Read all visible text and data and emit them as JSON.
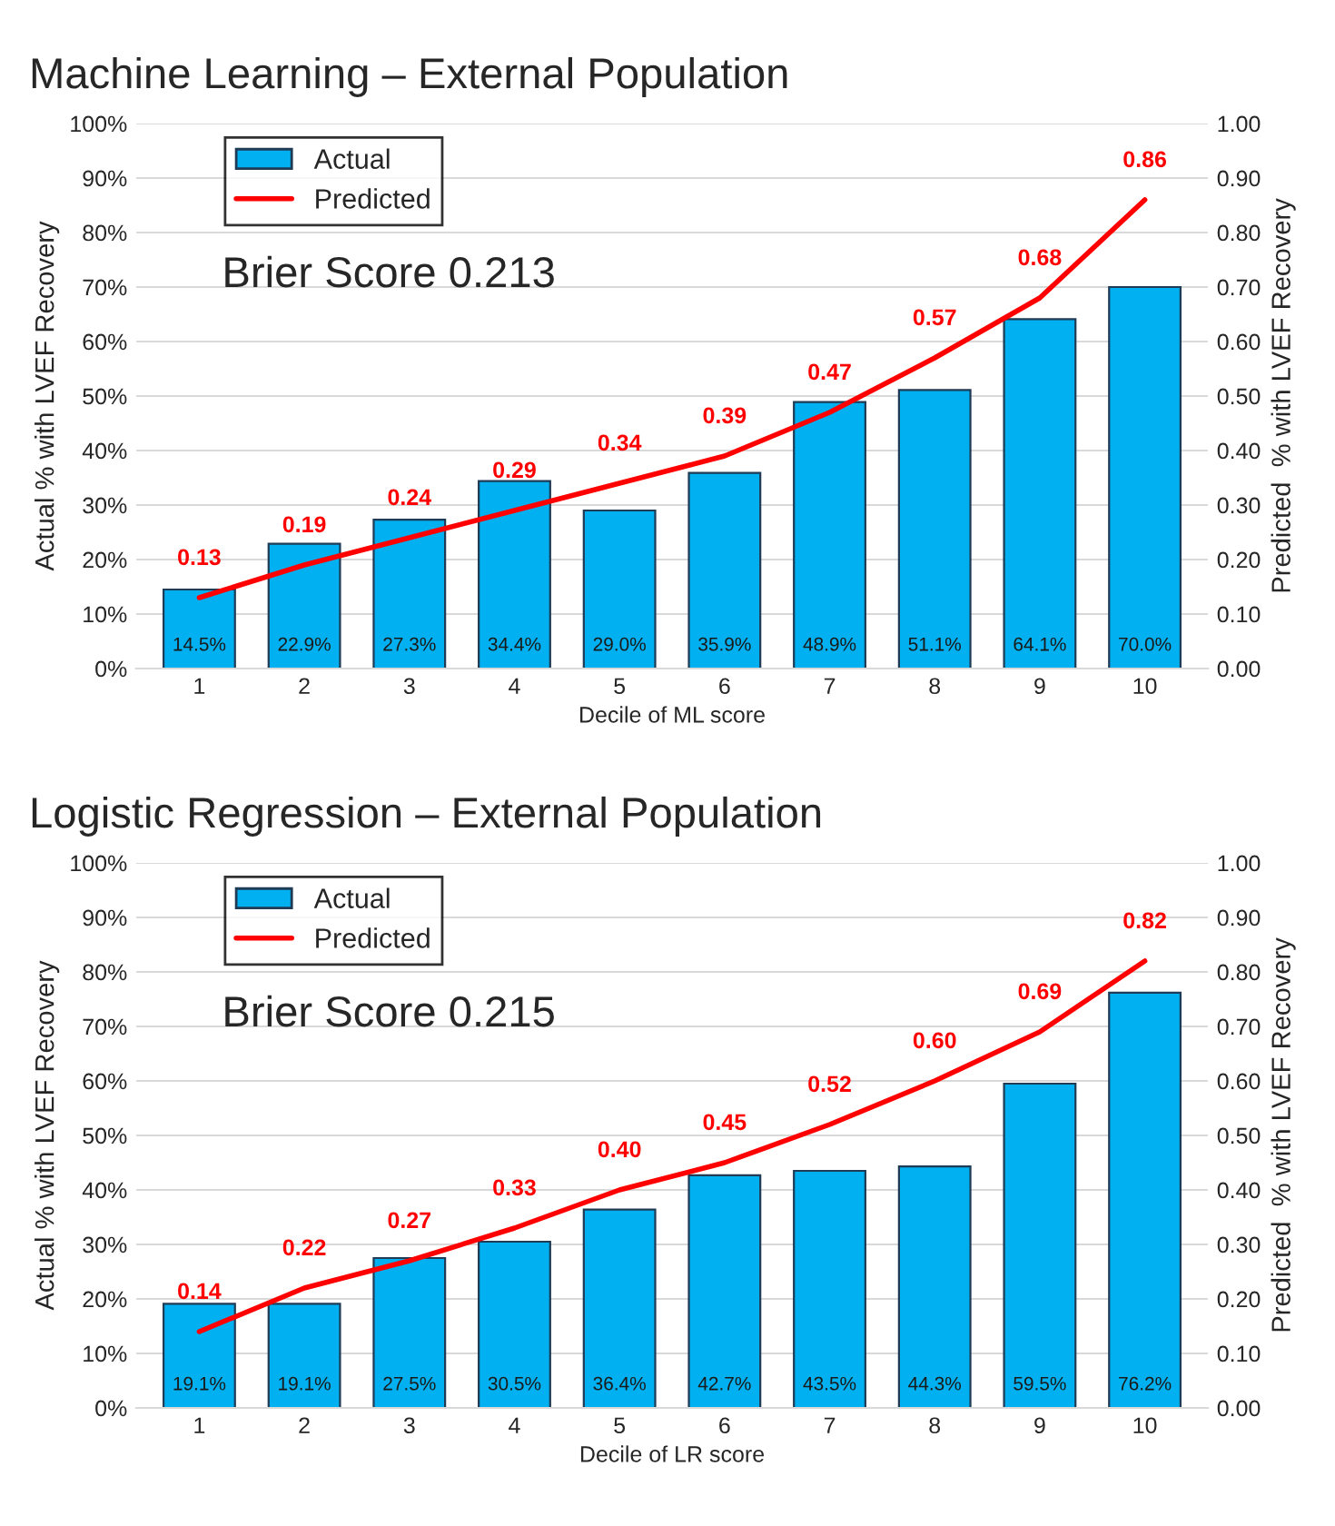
{
  "chart_data": [
    {
      "type": "bar",
      "title": "Machine Learning – External Population",
      "xlabel": "Decile of ML score",
      "ylabel": "Actual % with LVEF Recovery",
      "y2label": "Predicted  % with LVEF Recovery",
      "categories": [
        "1",
        "2",
        "3",
        "4",
        "5",
        "6",
        "7",
        "8",
        "9",
        "10"
      ],
      "series": [
        {
          "name": "Actual",
          "color": "#00b0f0",
          "values": [
            14.5,
            22.9,
            27.3,
            34.4,
            29.0,
            35.9,
            48.9,
            51.1,
            64.1,
            70.0
          ],
          "value_labels": [
            "14.5%",
            "22.9%",
            "27.3%",
            "34.4%",
            "29.0%",
            "35.9%",
            "48.9%",
            "51.1%",
            "64.1%",
            "70.0%"
          ]
        },
        {
          "name": "Predicted",
          "type": "line",
          "axis": "y2",
          "color": "#ff0000",
          "values": [
            0.13,
            0.19,
            0.24,
            0.29,
            0.34,
            0.39,
            0.47,
            0.57,
            0.68,
            0.86
          ],
          "value_labels": [
            "0.13",
            "0.19",
            "0.24",
            "0.29",
            "0.34",
            "0.39",
            "0.47",
            "0.57",
            "0.68",
            "0.86"
          ]
        }
      ],
      "ylim": [
        0,
        100
      ],
      "yticks": [
        {
          "value": 0,
          "label": "0%"
        },
        {
          "value": 10,
          "label": "10%"
        },
        {
          "value": 20,
          "label": "20%"
        },
        {
          "value": 30,
          "label": "30%"
        },
        {
          "value": 40,
          "label": "40%"
        },
        {
          "value": 50,
          "label": "50%"
        },
        {
          "value": 60,
          "label": "60%"
        },
        {
          "value": 70,
          "label": "70%"
        },
        {
          "value": 80,
          "label": "80%"
        },
        {
          "value": 90,
          "label": "90%"
        },
        {
          "value": 100,
          "label": "100%"
        }
      ],
      "y2lim": [
        0,
        1
      ],
      "y2ticks": [
        {
          "value": 0,
          "label": "0.00"
        },
        {
          "value": 0.1,
          "label": "0.10"
        },
        {
          "value": 0.2,
          "label": "0.20"
        },
        {
          "value": 0.3,
          "label": "0.30"
        },
        {
          "value": 0.4,
          "label": "0.40"
        },
        {
          "value": 0.5,
          "label": "0.50"
        },
        {
          "value": 0.6,
          "label": "0.60"
        },
        {
          "value": 0.7,
          "label": "0.70"
        },
        {
          "value": 0.8,
          "label": "0.80"
        },
        {
          "value": 0.9,
          "label": "0.90"
        },
        {
          "value": 1,
          "label": "1.00"
        }
      ],
      "annotations": [
        "Brier Score 0.213"
      ],
      "grid": "y",
      "legend": "top left"
    },
    {
      "type": "bar",
      "title": "Logistic Regression – External Population",
      "xlabel": "Decile of LR score",
      "ylabel": "Actual % with LVEF Recovery",
      "y2label": "Predicted  % with LVEF Recovery",
      "categories": [
        "1",
        "2",
        "3",
        "4",
        "5",
        "6",
        "7",
        "8",
        "9",
        "10"
      ],
      "series": [
        {
          "name": "Actual",
          "color": "#00b0f0",
          "values": [
            19.1,
            19.1,
            27.5,
            30.5,
            36.4,
            42.7,
            43.5,
            44.3,
            59.5,
            76.2
          ],
          "value_labels": [
            "19.1%",
            "19.1%",
            "27.5%",
            "30.5%",
            "36.4%",
            "42.7%",
            "43.5%",
            "44.3%",
            "59.5%",
            "76.2%"
          ]
        },
        {
          "name": "Predicted",
          "type": "line",
          "axis": "y2",
          "color": "#ff0000",
          "values": [
            0.14,
            0.22,
            0.27,
            0.33,
            0.4,
            0.45,
            0.52,
            0.6,
            0.69,
            0.82
          ],
          "value_labels": [
            "0.14",
            "0.22",
            "0.27",
            "0.33",
            "0.40",
            "0.45",
            "0.52",
            "0.60",
            "0.69",
            "0.82"
          ]
        }
      ],
      "ylim": [
        0,
        100
      ],
      "yticks": [
        {
          "value": 0,
          "label": "0%"
        },
        {
          "value": 10,
          "label": "10%"
        },
        {
          "value": 20,
          "label": "20%"
        },
        {
          "value": 30,
          "label": "30%"
        },
        {
          "value": 40,
          "label": "40%"
        },
        {
          "value": 50,
          "label": "50%"
        },
        {
          "value": 60,
          "label": "60%"
        },
        {
          "value": 70,
          "label": "70%"
        },
        {
          "value": 80,
          "label": "80%"
        },
        {
          "value": 90,
          "label": "90%"
        },
        {
          "value": 100,
          "label": "100%"
        }
      ],
      "y2lim": [
        0,
        1
      ],
      "y2ticks": [
        {
          "value": 0,
          "label": "0.00"
        },
        {
          "value": 0.1,
          "label": "0.10"
        },
        {
          "value": 0.2,
          "label": "0.20"
        },
        {
          "value": 0.3,
          "label": "0.30"
        },
        {
          "value": 0.4,
          "label": "0.40"
        },
        {
          "value": 0.5,
          "label": "0.50"
        },
        {
          "value": 0.6,
          "label": "0.60"
        },
        {
          "value": 0.7,
          "label": "0.70"
        },
        {
          "value": 0.8,
          "label": "0.80"
        },
        {
          "value": 0.9,
          "label": "0.90"
        },
        {
          "value": 1,
          "label": "1.00"
        }
      ],
      "annotations": [
        "Brier Score 0.215"
      ],
      "grid": "y",
      "legend": "top left"
    }
  ]
}
